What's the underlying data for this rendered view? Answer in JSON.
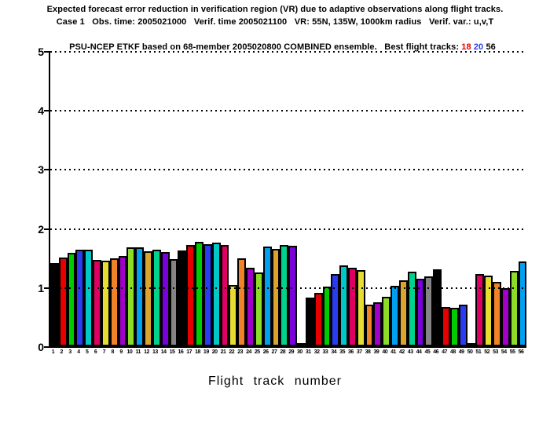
{
  "title": {
    "line1": "Expected forecast error reduction in verification region (VR) due to adaptive observations along flight tracks.",
    "line2": "Case 1   Obs. time: 2005021000   Verif. time 2005021100   VR: 55N, 135W, 1000km radius   Verif. var.: u,v,T",
    "line3_prefix": "PSU-NCEP ETKF based on 68-member 2005020800 COMBINED ensemble.   Best flight tracks: ",
    "best_tracks": [
      {
        "label": "18",
        "color": "#e60000"
      },
      {
        "label": "20",
        "color": "#2a3cf0"
      },
      {
        "label": "56",
        "color": "#000000"
      }
    ]
  },
  "chart_data": {
    "type": "bar",
    "title": "Expected forecast error reduction in VR due to adaptive observations along flight tracks",
    "xlabel": "Flight track number",
    "ylabel": "",
    "ylim": [
      0,
      5
    ],
    "yticks": [
      0,
      1,
      2,
      3,
      4,
      5
    ],
    "grid": "horizontal dotted at each y tick",
    "legend": "none",
    "categories": [
      "1",
      "2",
      "3",
      "4",
      "5",
      "6",
      "7",
      "8",
      "9",
      "10",
      "11",
      "12",
      "13",
      "14",
      "15",
      "16",
      "17",
      "18",
      "19",
      "20",
      "21",
      "22",
      "23",
      "24",
      "25",
      "26",
      "27",
      "28",
      "29",
      "30",
      "31",
      "32",
      "33",
      "34",
      "35",
      "36",
      "37",
      "38",
      "39",
      "40",
      "41",
      "42",
      "43",
      "44",
      "45",
      "46",
      "47",
      "48",
      "49",
      "50",
      "51",
      "52",
      "53",
      "54",
      "55",
      "56"
    ],
    "values": [
      1.41,
      1.5,
      1.58,
      1.63,
      1.64,
      1.46,
      1.45,
      1.49,
      1.53,
      1.68,
      1.68,
      1.61,
      1.63,
      1.6,
      1.48,
      1.62,
      1.71,
      1.77,
      1.73,
      1.76,
      1.72,
      1.04,
      1.49,
      1.33,
      1.25,
      1.69,
      1.65,
      1.72,
      1.7,
      0.02,
      0.82,
      0.9,
      1.01,
      1.22,
      1.37,
      1.33,
      1.29,
      0.7,
      0.75,
      0.84,
      1.02,
      1.12,
      1.26,
      1.14,
      1.19,
      1.3,
      0.67,
      0.65,
      0.71,
      0.02,
      1.23,
      1.2,
      1.09,
      0.99,
      1.28,
      1.44
    ],
    "color_cycle": [
      "#000000",
      "#e60000",
      "#00cc00",
      "#2a3cf0",
      "#00c8c8",
      "#e00064",
      "#e6dc32",
      "#f08228",
      "#a000c8",
      "#8cdc28",
      "#00a0f0",
      "#dca42c",
      "#00d28c",
      "#7a00dc",
      "#848484"
    ],
    "color_rule": "bar n (1-based) uses color_cycle[(n-1) % 15]"
  }
}
